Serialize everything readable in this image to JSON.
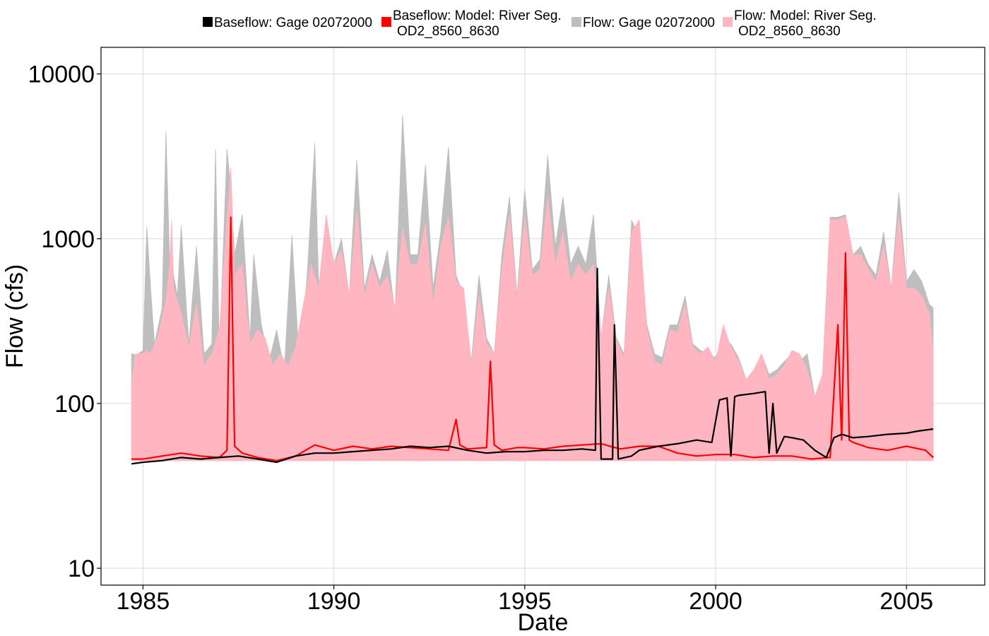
{
  "chart_data": {
    "type": "area",
    "xlabel": "Date",
    "ylabel": "Flow (cfs)",
    "y_scale": "log",
    "xlim": [
      1983.9,
      2007.05
    ],
    "ylim": [
      7.9,
      14500
    ],
    "x_ticks": [
      1985,
      1990,
      1995,
      2000,
      2005
    ],
    "x_tick_labels": [
      "1985",
      "1990",
      "1995",
      "2000",
      "2005"
    ],
    "y_ticks": [
      10,
      100,
      1000,
      10000
    ],
    "y_tick_labels": [
      "10",
      "100",
      "1000",
      "10000"
    ],
    "grid": true,
    "legend_position": "top",
    "legend": [
      {
        "label_lines": [
          "Baseflow: Gage 02072000"
        ],
        "color": "#000000"
      },
      {
        "label_lines": [
          "Baseflow: Model: River Seg.",
          "OD2_8560_8630"
        ],
        "color": "#ff0000"
      },
      {
        "label_lines": [
          "Flow: Gage 02072000"
        ],
        "color": "#bebebe"
      },
      {
        "label_lines": [
          "Flow: Model: River Seg.",
          "OD2_8560_8630"
        ],
        "color": "#ffb6c1"
      }
    ],
    "series": [
      {
        "name": "Flow: Gage 02072000",
        "style": "area",
        "color": "#bebebe",
        "x": [
          1984.7,
          1984.75,
          1984.8,
          1985.0,
          1985.1,
          1985.2,
          1985.3,
          1985.5,
          1985.6,
          1985.7,
          1985.75,
          1985.8,
          1985.9,
          1986.0,
          1986.2,
          1986.4,
          1986.6,
          1986.8,
          1986.9,
          1987.0,
          1987.2,
          1987.3,
          1987.4,
          1987.6,
          1987.8,
          1987.9,
          1988.1,
          1988.3,
          1988.5,
          1988.7,
          1988.9,
          1989.1,
          1989.3,
          1989.5,
          1989.6,
          1989.8,
          1990.0,
          1990.2,
          1990.4,
          1990.6,
          1990.8,
          1991.0,
          1991.2,
          1991.4,
          1991.6,
          1991.8,
          1992.0,
          1992.2,
          1992.4,
          1992.6,
          1992.8,
          1993.0,
          1993.2,
          1993.4,
          1993.6,
          1993.8,
          1994.0,
          1994.2,
          1994.4,
          1994.6,
          1994.8,
          1995.0,
          1995.2,
          1995.4,
          1995.6,
          1995.8,
          1996.0,
          1996.2,
          1996.4,
          1996.6,
          1996.8,
          1997.0,
          1997.2,
          1997.4,
          1997.6,
          1997.8,
          1998.0,
          1998.2,
          1998.4,
          1998.6,
          1998.8,
          1999.0,
          1999.2,
          1999.4,
          1999.6,
          1999.8,
          2000.0,
          2000.2,
          2000.4,
          2000.6,
          2000.8,
          2001.0,
          2001.2,
          2001.4,
          2001.6,
          2001.8,
          2002.0,
          2002.2,
          2002.4,
          2002.6,
          2002.8,
          2003.0,
          2003.2,
          2003.4,
          2003.6,
          2003.8,
          2004.0,
          2004.2,
          2004.4,
          2004.6,
          2004.8,
          2005.0,
          2005.2,
          2005.4,
          2005.6,
          2005.7
        ],
        "y": [
          200,
          200,
          195,
          210,
          1180,
          500,
          230,
          380,
          4500,
          700,
          950,
          600,
          450,
          1200,
          230,
          900,
          200,
          230,
          3500,
          200,
          3500,
          2000,
          800,
          1400,
          250,
          800,
          300,
          180,
          280,
          160,
          1050,
          170,
          600,
          3800,
          550,
          700,
          700,
          1000,
          450,
          3000,
          500,
          800,
          550,
          850,
          350,
          5600,
          800,
          800,
          2800,
          500,
          1100,
          3600,
          600,
          450,
          180,
          600,
          250,
          200,
          800,
          1800,
          450,
          2000,
          650,
          750,
          3200,
          900,
          1800,
          700,
          900,
          700,
          1400,
          250,
          600,
          250,
          200,
          1300,
          1000,
          300,
          200,
          190,
          300,
          300,
          450,
          230,
          210,
          200,
          190,
          250,
          230,
          190,
          140,
          160,
          200,
          150,
          160,
          180,
          200,
          180,
          200,
          110,
          150,
          1350,
          1350,
          1400,
          800,
          900,
          700,
          600,
          1100,
          500,
          1900,
          550,
          650,
          550,
          400,
          380
        ],
        "min": 45
      },
      {
        "name": "Flow: Model: River Seg. OD2_8560_8630",
        "style": "area",
        "color": "#ffb6c1",
        "x": [
          1984.7,
          1984.8,
          1985.0,
          1985.1,
          1985.2,
          1985.4,
          1985.6,
          1985.7,
          1985.75,
          1985.8,
          1986.0,
          1986.2,
          1986.4,
          1986.6,
          1986.8,
          1987.0,
          1987.2,
          1987.3,
          1987.4,
          1987.6,
          1987.8,
          1988.0,
          1988.2,
          1988.4,
          1988.6,
          1988.8,
          1989.0,
          1989.2,
          1989.4,
          1989.6,
          1989.8,
          1990.0,
          1990.2,
          1990.4,
          1990.6,
          1990.8,
          1991.0,
          1991.2,
          1991.4,
          1991.6,
          1991.8,
          1992.0,
          1992.2,
          1992.4,
          1992.6,
          1992.8,
          1993.0,
          1993.2,
          1993.4,
          1993.6,
          1993.8,
          1994.0,
          1994.2,
          1994.4,
          1994.6,
          1994.8,
          1995.0,
          1995.2,
          1995.4,
          1995.6,
          1995.8,
          1996.0,
          1996.2,
          1996.4,
          1996.6,
          1996.8,
          1997.0,
          1997.2,
          1997.4,
          1997.6,
          1997.8,
          1998.0,
          1998.2,
          1998.4,
          1998.6,
          1998.8,
          1999.0,
          1999.2,
          1999.4,
          1999.6,
          1999.8,
          2000.0,
          2000.2,
          2000.4,
          2000.6,
          2000.8,
          2001.0,
          2001.2,
          2001.4,
          2001.6,
          2001.8,
          2002.0,
          2002.2,
          2002.4,
          2002.6,
          2002.8,
          2003.0,
          2003.2,
          2003.4,
          2003.6,
          2003.8,
          2004.0,
          2004.2,
          2004.4,
          2004.6,
          2004.8,
          2005.0,
          2005.2,
          2005.4,
          2005.6,
          2005.7
        ],
        "y": [
          130,
          200,
          200,
          210,
          200,
          260,
          420,
          700,
          1300,
          500,
          350,
          220,
          400,
          170,
          200,
          280,
          1300,
          2700,
          600,
          700,
          230,
          280,
          250,
          170,
          200,
          170,
          220,
          400,
          700,
          500,
          1400,
          700,
          850,
          450,
          1500,
          450,
          700,
          500,
          600,
          380,
          1150,
          700,
          700,
          1250,
          400,
          900,
          1350,
          550,
          500,
          170,
          450,
          230,
          200,
          650,
          1400,
          420,
          1350,
          600,
          650,
          1800,
          700,
          1100,
          550,
          700,
          600,
          700,
          250,
          500,
          240,
          190,
          1100,
          1300,
          280,
          180,
          170,
          280,
          270,
          400,
          220,
          200,
          220,
          180,
          300,
          220,
          180,
          140,
          160,
          200,
          140,
          150,
          170,
          210,
          200,
          160,
          110,
          150,
          1300,
          1300,
          1350,
          800,
          800,
          650,
          550,
          900,
          500,
          1400,
          500,
          500,
          450,
          350,
          210
        ],
        "min": 45
      },
      {
        "name": "Baseflow: Model: River Seg. OD2_8560_8630",
        "style": "line",
        "color": "#ff0000",
        "x": [
          1984.7,
          1985.0,
          1985.5,
          1986.0,
          1986.5,
          1987.0,
          1987.2,
          1987.3,
          1987.4,
          1987.6,
          1988.0,
          1988.5,
          1989.0,
          1989.5,
          1990.0,
          1990.5,
          1991.0,
          1991.5,
          1992.0,
          1992.5,
          1993.0,
          1993.2,
          1993.3,
          1993.5,
          1994.0,
          1994.1,
          1994.2,
          1994.4,
          1994.8,
          1995.0,
          1995.5,
          1996.0,
          1996.5,
          1997.0,
          1997.5,
          1998.0,
          1998.5,
          1999.0,
          1999.5,
          2000.0,
          2000.5,
          2001.0,
          2001.5,
          2002.0,
          2002.5,
          2003.0,
          2003.2,
          2003.3,
          2003.4,
          2003.5,
          2003.6,
          2003.8,
          2004.0,
          2004.5,
          2005.0,
          2005.5,
          2005.7
        ],
        "y": [
          46,
          46,
          48,
          50,
          48,
          47,
          52,
          1350,
          55,
          50,
          47,
          45,
          48,
          56,
          52,
          55,
          53,
          55,
          54,
          53,
          52,
          80,
          56,
          53,
          54,
          180,
          56,
          52,
          54,
          54,
          53,
          55,
          56,
          57,
          53,
          55,
          55,
          50,
          48,
          49,
          49,
          47,
          48,
          48,
          46,
          47,
          300,
          60,
          820,
          60,
          58,
          56,
          54,
          52,
          55,
          52,
          47
        ]
      },
      {
        "name": "Baseflow: Gage 02072000",
        "style": "line",
        "color": "#000000",
        "x": [
          1984.7,
          1985.0,
          1985.5,
          1986.0,
          1986.5,
          1987.0,
          1987.5,
          1988.0,
          1988.5,
          1989.0,
          1989.5,
          1990.0,
          1990.5,
          1991.0,
          1991.5,
          1992.0,
          1992.5,
          1993.0,
          1993.5,
          1994.0,
          1994.5,
          1995.0,
          1995.5,
          1996.0,
          1996.5,
          1996.85,
          1996.9,
          1997.0,
          1997.3,
          1997.35,
          1997.45,
          1997.8,
          1998.0,
          1998.5,
          1999.0,
          1999.5,
          1999.9,
          2000.1,
          2000.3,
          2000.4,
          2000.5,
          2000.6,
          2001.0,
          2001.3,
          2001.4,
          2001.5,
          2001.6,
          2001.8,
          2002.0,
          2002.3,
          2002.6,
          2002.9,
          2003.1,
          2003.3,
          2003.6,
          2004.0,
          2004.5,
          2005.0,
          2005.3,
          2005.7
        ],
        "y": [
          43,
          44,
          45,
          47,
          46,
          47,
          48,
          46,
          44,
          48,
          50,
          50,
          51,
          52,
          53,
          55,
          54,
          55,
          52,
          50,
          51,
          51,
          52,
          52,
          53,
          52,
          660,
          46,
          46,
          300,
          46,
          48,
          52,
          55,
          57,
          60,
          58,
          105,
          108,
          48,
          110,
          112,
          115,
          118,
          50,
          100,
          50,
          63,
          62,
          60,
          52,
          47,
          62,
          65,
          62,
          63,
          65,
          66,
          68,
          70
        ]
      }
    ]
  }
}
